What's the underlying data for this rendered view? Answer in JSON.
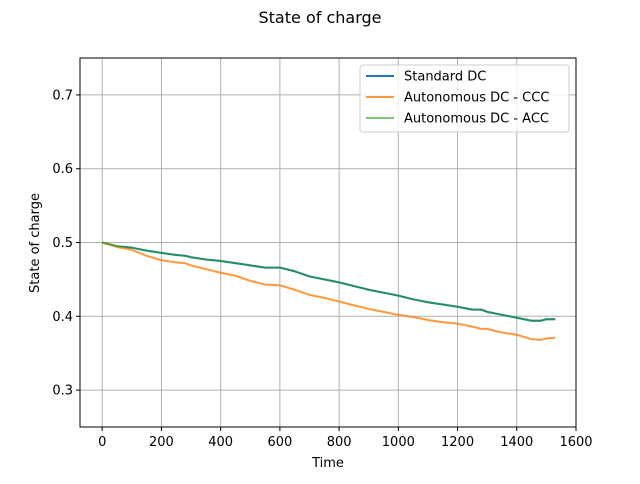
{
  "chart_data": {
    "type": "line",
    "title": "State of charge",
    "xlabel": "Time",
    "ylabel": "State of charge",
    "xlim": [
      -75,
      1600
    ],
    "ylim": [
      0.25,
      0.75
    ],
    "xticks": [
      0,
      200,
      400,
      600,
      800,
      1000,
      1200,
      1400,
      1600
    ],
    "xtick_labels": [
      "0",
      "200",
      "400",
      "600",
      "800",
      "1000",
      "1200",
      "1400",
      "1600"
    ],
    "yticks": [
      0.3,
      0.4,
      0.5,
      0.6,
      0.7
    ],
    "ytick_labels": [
      "0.3",
      "0.4",
      "0.5",
      "0.6",
      "0.7"
    ],
    "grid": true,
    "legend_position": "top-right",
    "series": [
      {
        "name": "Standard DC",
        "color": "#1f77b4",
        "x": [
          0,
          50,
          100,
          150,
          200,
          250,
          280,
          300,
          350,
          400,
          450,
          500,
          550,
          600,
          650,
          700,
          750,
          800,
          850,
          900,
          950,
          1000,
          1050,
          1100,
          1150,
          1200,
          1250,
          1280,
          1300,
          1350,
          1400,
          1450,
          1480,
          1500,
          1530
        ],
        "y": [
          0.5,
          0.495,
          0.493,
          0.489,
          0.486,
          0.483,
          0.482,
          0.48,
          0.477,
          0.475,
          0.472,
          0.469,
          0.466,
          0.466,
          0.461,
          0.454,
          0.45,
          0.446,
          0.441,
          0.436,
          0.432,
          0.428,
          0.423,
          0.419,
          0.416,
          0.413,
          0.409,
          0.409,
          0.406,
          0.402,
          0.398,
          0.394,
          0.394,
          0.396,
          0.396
        ]
      },
      {
        "name": " Autonomous DC - CCC",
        "color": "#ff7f0e",
        "x": [
          0,
          50,
          100,
          150,
          200,
          250,
          280,
          300,
          350,
          400,
          450,
          500,
          550,
          600,
          650,
          700,
          750,
          800,
          850,
          900,
          950,
          1000,
          1050,
          1100,
          1150,
          1200,
          1250,
          1280,
          1300,
          1350,
          1400,
          1450,
          1480,
          1500,
          1530
        ],
        "y": [
          0.5,
          0.494,
          0.49,
          0.482,
          0.476,
          0.473,
          0.472,
          0.469,
          0.464,
          0.459,
          0.455,
          0.448,
          0.443,
          0.442,
          0.436,
          0.429,
          0.425,
          0.42,
          0.415,
          0.41,
          0.406,
          0.402,
          0.399,
          0.395,
          0.392,
          0.39,
          0.386,
          0.383,
          0.383,
          0.378,
          0.375,
          0.369,
          0.368,
          0.37,
          0.371
        ]
      },
      {
        "name": " Autonomous DC - ACC",
        "color": "#2ca02c",
        "x": [
          0,
          50,
          100,
          150,
          200,
          250,
          280,
          300,
          350,
          400,
          450,
          500,
          550,
          600,
          650,
          700,
          750,
          800,
          850,
          900,
          950,
          1000,
          1050,
          1100,
          1150,
          1200,
          1250,
          1280,
          1300,
          1350,
          1400,
          1450,
          1480,
          1500,
          1530
        ],
        "y": [
          0.5,
          0.495,
          0.493,
          0.489,
          0.486,
          0.483,
          0.482,
          0.48,
          0.477,
          0.475,
          0.472,
          0.469,
          0.466,
          0.466,
          0.461,
          0.454,
          0.45,
          0.446,
          0.441,
          0.436,
          0.432,
          0.428,
          0.423,
          0.419,
          0.416,
          0.413,
          0.409,
          0.409,
          0.406,
          0.402,
          0.398,
          0.394,
          0.394,
          0.396,
          0.396
        ]
      }
    ]
  }
}
